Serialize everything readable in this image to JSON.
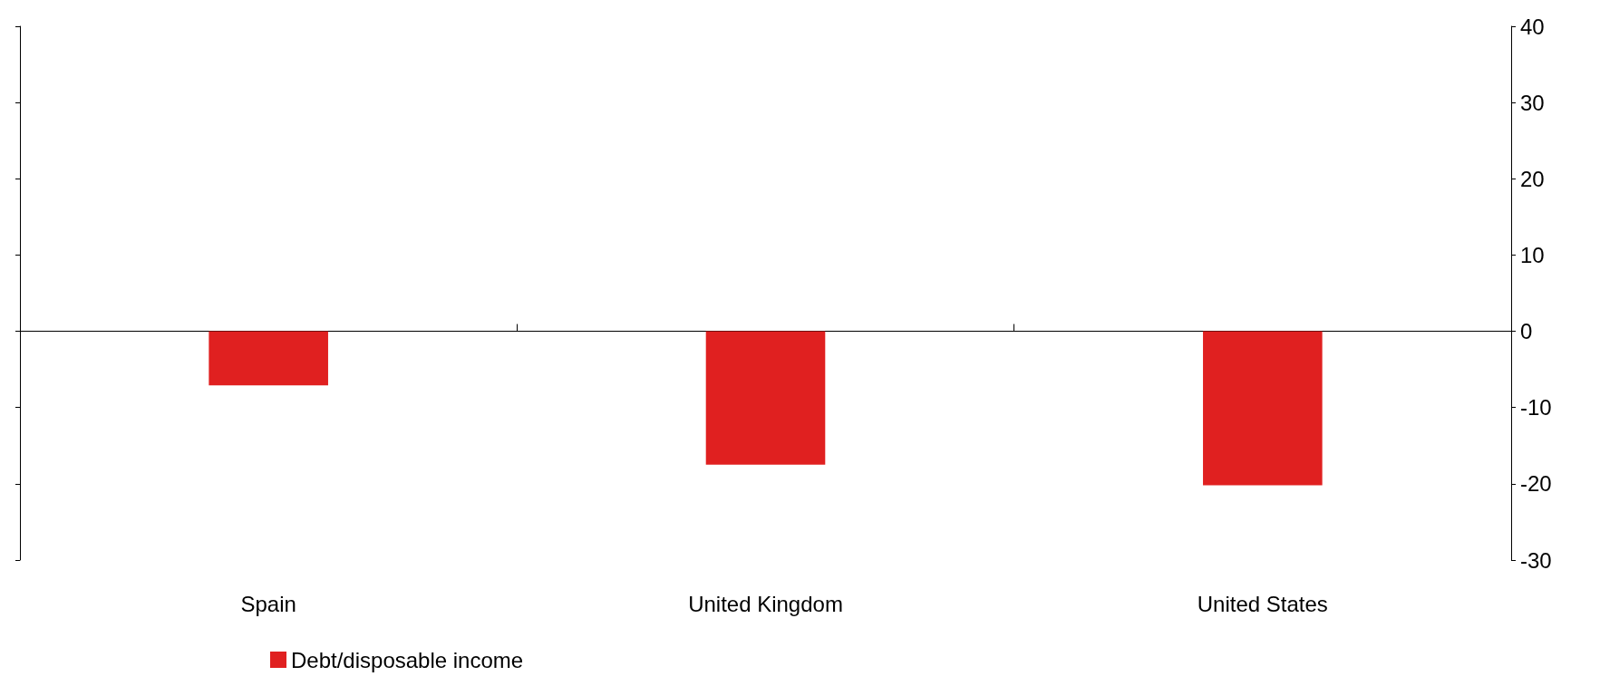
{
  "chart_data": {
    "type": "bar",
    "categories": [
      "Spain",
      "United Kingdom",
      "United States"
    ],
    "series": [
      {
        "name": "Debt/disposable income",
        "color": "#e02020",
        "values": [
          -7.1,
          -17.5,
          -20.2
        ]
      }
    ],
    "ylim": [
      -30,
      40
    ],
    "yticks": [
      -30,
      -20,
      -10,
      0,
      10,
      20,
      30,
      40
    ],
    "legend": "bottom left"
  }
}
